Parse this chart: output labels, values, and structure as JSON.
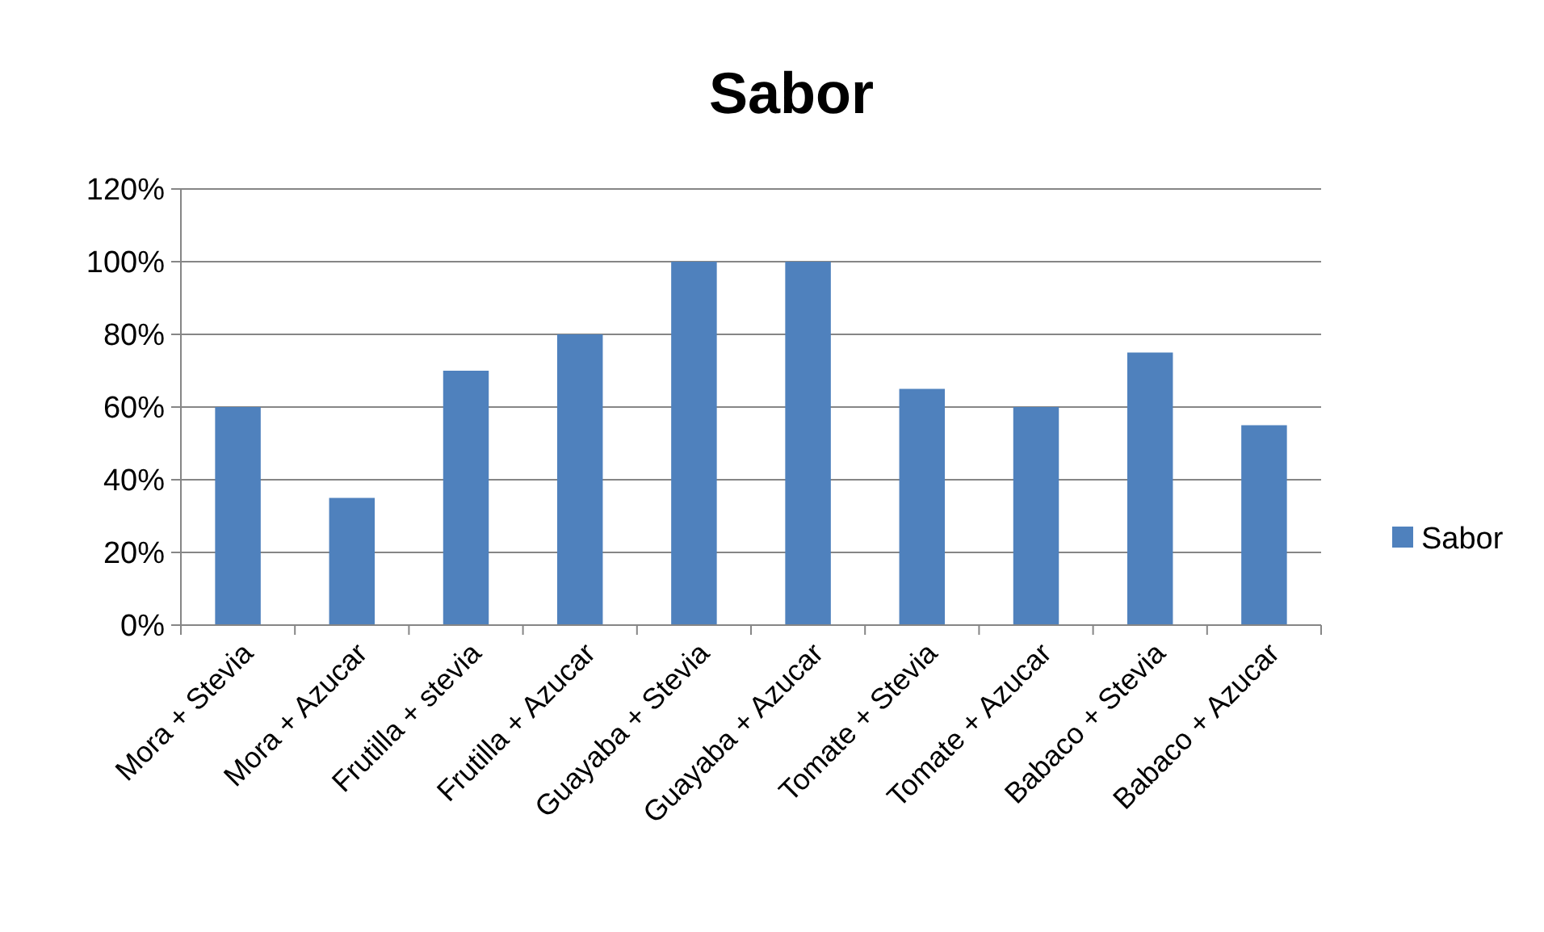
{
  "chart_data": {
    "type": "bar",
    "title": "Sabor",
    "categories": [
      "Mora + Stevia",
      "Mora + Azucar",
      "Frutilla + stevia",
      "Frutilla + Azucar",
      "Guayaba + Stevia",
      "Guayaba + Azucar",
      "Tomate + Stevia",
      "Tomate + Azucar",
      "Babaco + Stevia",
      "Babaco + Azucar"
    ],
    "series": [
      {
        "name": "Sabor",
        "color": "#4f81bd",
        "values": [
          60,
          35,
          70,
          80,
          100,
          100,
          65,
          60,
          75,
          55
        ]
      }
    ],
    "ylim": [
      0,
      120
    ],
    "yticks": [
      {
        "value": 0,
        "label": "0%"
      },
      {
        "value": 20,
        "label": "20%"
      },
      {
        "value": 40,
        "label": "40%"
      },
      {
        "value": 60,
        "label": "60%"
      },
      {
        "value": 80,
        "label": "80%"
      },
      {
        "value": 100,
        "label": "100%"
      },
      {
        "value": 120,
        "label": "120%"
      }
    ],
    "grid": "y",
    "legend": "right"
  }
}
